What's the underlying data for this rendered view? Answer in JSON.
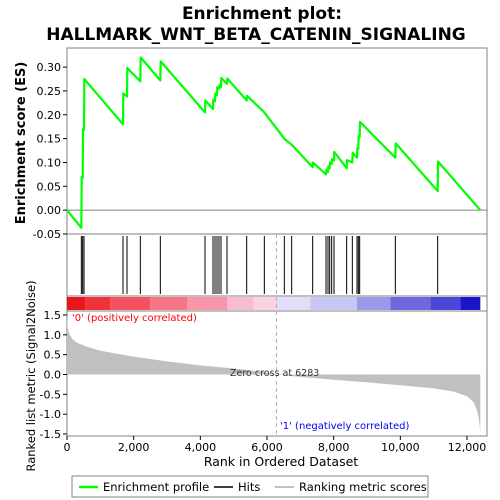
{
  "chart_data": {
    "type": "line",
    "title_line1": "Enrichment plot:",
    "title_line2": "HALLMARK_WNT_BETA_CATENIN_SIGNALING",
    "es_ylabel": "Enrichment score (ES)",
    "metric_ylabel": "Ranked list metric (Signal2Noise)",
    "xlabel": "Rank in Ordered Dataset",
    "es_ylim": [
      -0.05,
      0.34
    ],
    "es_yticks": [
      "-0.05",
      "0.00",
      "0.05",
      "0.10",
      "0.15",
      "0.20",
      "0.25",
      "0.30"
    ],
    "metric_ylim": [
      -1.55,
      1.6
    ],
    "metric_yticks": [
      "-1.5",
      "-1.0",
      "-0.5",
      "0.0",
      "0.5",
      "1.0",
      "1.5"
    ],
    "xlim": [
      0,
      12600
    ],
    "xticks": [
      "0",
      "2,000",
      "4,000",
      "6,000",
      "8,000",
      "10,000",
      "12,000"
    ],
    "total_rank": 12400,
    "zero_cross_label": "Zero cross at 6283",
    "zero_cross": 6283,
    "positive_label": "'0' (positively correlated)",
    "negative_label": "'1' (negatively correlated)",
    "hits": [
      430,
      470,
      510,
      1680,
      1800,
      2200,
      2800,
      4140,
      4380,
      4440,
      4500,
      4560,
      4620,
      4800,
      5390,
      5920,
      6520,
      6740,
      7370,
      7770,
      7830,
      7880,
      7940,
      8010,
      8390,
      8560,
      8700,
      8740,
      8780,
      9850,
      11120
    ],
    "es_curve": [
      [
        0,
        0.0
      ],
      [
        430,
        -0.037
      ],
      [
        440,
        0.07
      ],
      [
        470,
        0.068
      ],
      [
        480,
        0.17
      ],
      [
        510,
        0.168
      ],
      [
        520,
        0.275
      ],
      [
        1680,
        0.18
      ],
      [
        1690,
        0.245
      ],
      [
        1800,
        0.238
      ],
      [
        1810,
        0.298
      ],
      [
        2200,
        0.27
      ],
      [
        2210,
        0.32
      ],
      [
        2800,
        0.272
      ],
      [
        2810,
        0.312
      ],
      [
        4140,
        0.205
      ],
      [
        4150,
        0.23
      ],
      [
        4380,
        0.212
      ],
      [
        4390,
        0.232
      ],
      [
        4440,
        0.228
      ],
      [
        4450,
        0.245
      ],
      [
        4500,
        0.241
      ],
      [
        4510,
        0.258
      ],
      [
        4560,
        0.255
      ],
      [
        4570,
        0.262
      ],
      [
        4620,
        0.258
      ],
      [
        4630,
        0.277
      ],
      [
        4800,
        0.265
      ],
      [
        4810,
        0.276
      ],
      [
        5390,
        0.23
      ],
      [
        5400,
        0.24
      ],
      [
        5920,
        0.205
      ],
      [
        6520,
        0.15
      ],
      [
        6740,
        0.137
      ],
      [
        7370,
        0.09
      ],
      [
        7380,
        0.1
      ],
      [
        7770,
        0.075
      ],
      [
        7780,
        0.085
      ],
      [
        7830,
        0.08
      ],
      [
        7840,
        0.092
      ],
      [
        7880,
        0.088
      ],
      [
        7890,
        0.1
      ],
      [
        7940,
        0.097
      ],
      [
        7950,
        0.107
      ],
      [
        8010,
        0.104
      ],
      [
        8020,
        0.122
      ],
      [
        8390,
        0.088
      ],
      [
        8400,
        0.105
      ],
      [
        8560,
        0.1
      ],
      [
        8570,
        0.12
      ],
      [
        8700,
        0.11
      ],
      [
        8710,
        0.13
      ],
      [
        8740,
        0.128
      ],
      [
        8750,
        0.155
      ],
      [
        8780,
        0.153
      ],
      [
        8790,
        0.185
      ],
      [
        9850,
        0.11
      ],
      [
        9860,
        0.14
      ],
      [
        11120,
        0.04
      ],
      [
        11130,
        0.102
      ],
      [
        12400,
        0.0
      ]
    ],
    "metric_curve": [
      [
        0,
        1.45
      ],
      [
        20,
        1.2
      ],
      [
        60,
        1.05
      ],
      [
        150,
        0.9
      ],
      [
        300,
        0.8
      ],
      [
        600,
        0.7
      ],
      [
        1000,
        0.6
      ],
      [
        2000,
        0.45
      ],
      [
        3000,
        0.33
      ],
      [
        4000,
        0.23
      ],
      [
        5000,
        0.15
      ],
      [
        6000,
        0.05
      ],
      [
        6283,
        0.0
      ],
      [
        7000,
        -0.06
      ],
      [
        8000,
        -0.13
      ],
      [
        9000,
        -0.2
      ],
      [
        10000,
        -0.27
      ],
      [
        11000,
        -0.35
      ],
      [
        11600,
        -0.43
      ],
      [
        12000,
        -0.55
      ],
      [
        12200,
        -0.7
      ],
      [
        12300,
        -0.9
      ],
      [
        12360,
        -1.15
      ],
      [
        12400,
        -1.45
      ]
    ],
    "heatmap_segments": [
      {
        "from": 0,
        "to": 550,
        "color": "#e8161b"
      },
      {
        "from": 550,
        "to": 1300,
        "color": "#f0333a"
      },
      {
        "from": 1300,
        "to": 2500,
        "color": "#f35060"
      },
      {
        "from": 2500,
        "to": 3600,
        "color": "#f57585"
      },
      {
        "from": 3600,
        "to": 4800,
        "color": "#f796a8"
      },
      {
        "from": 4800,
        "to": 5600,
        "color": "#f8bcd0"
      },
      {
        "from": 5600,
        "to": 6283,
        "color": "#f9d3e4"
      },
      {
        "from": 6283,
        "to": 7300,
        "color": "#e0def8"
      },
      {
        "from": 7300,
        "to": 8700,
        "color": "#c8c6f2"
      },
      {
        "from": 8700,
        "to": 9700,
        "color": "#9c98ea"
      },
      {
        "from": 9700,
        "to": 10900,
        "color": "#6d68e0"
      },
      {
        "from": 10900,
        "to": 11800,
        "color": "#4c46d8"
      },
      {
        "from": 11800,
        "to": 12400,
        "color": "#1c14c8"
      }
    ],
    "legend": [
      {
        "label": "Enrichment profile",
        "color": "#00ff00"
      },
      {
        "label": "Hits",
        "color": "#000000"
      },
      {
        "label": "Ranking metric scores",
        "color": "#c0c0c0"
      }
    ],
    "colors": {
      "profile": "#00ff00",
      "hit": "#000000",
      "metric_fill": "#c0c0c0",
      "positive_label": "#ff0000",
      "negative_label": "#0000ff"
    }
  }
}
